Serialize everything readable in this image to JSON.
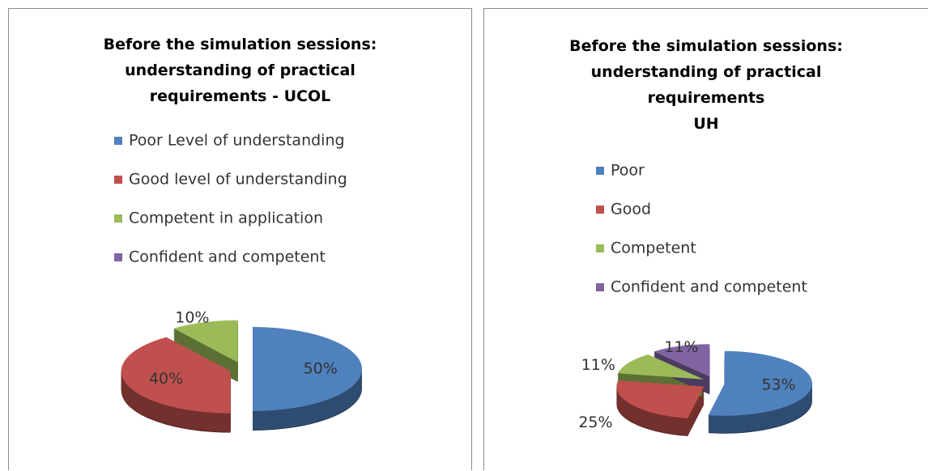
{
  "chart_data": [
    {
      "type": "pie",
      "title": "Before the simulation sessions:\nunderstanding of practical\nrequirements - UCOL",
      "categories": [
        "Poor Level of understanding",
        "Good level of understanding",
        "Competent in application",
        "Confident and competent"
      ],
      "values": [
        50,
        40,
        10,
        0
      ],
      "value_labels": [
        "50%",
        "40%",
        "10%",
        null
      ],
      "colors": [
        "#4f81bd",
        "#c0504d",
        "#9bbb59",
        "#8064a2"
      ],
      "legend": "top"
    },
    {
      "type": "pie",
      "title": "Before the simulation sessions:\nunderstanding of practical\nrequirements\nUH",
      "categories": [
        "Poor",
        "Good",
        "Competent",
        "Confident and competent"
      ],
      "values": [
        53,
        25,
        11,
        11
      ],
      "value_labels": [
        "53%",
        "25%",
        "11%",
        "11%"
      ],
      "colors": [
        "#4f81bd",
        "#c0504d",
        "#9bbb59",
        "#8064a2"
      ],
      "legend": "top"
    }
  ]
}
